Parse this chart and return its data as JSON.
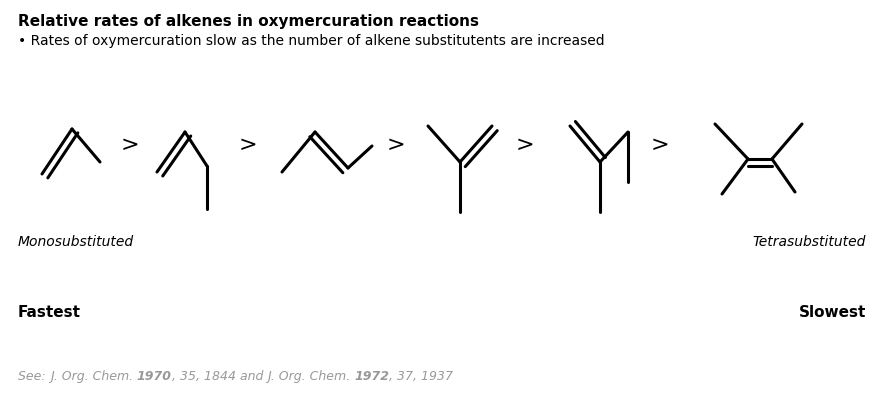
{
  "title": "Relative rates of alkenes in oxymercuration reactions",
  "subtitle": "• Rates of oxymercuration slow as the number of alkene substitutents are increased",
  "label_mono": "Monosubstituted",
  "label_tetra": "Tetrasubstituted",
  "label_fastest": "Fastest",
  "label_slowest": "Slowest",
  "bg_color": "#ffffff",
  "text_color": "#000000",
  "citation_color": "#999999",
  "title_fontsize": 11,
  "subtitle_fontsize": 10,
  "label_fontsize": 10,
  "fastest_fontsize": 11,
  "citation_fontsize": 9
}
